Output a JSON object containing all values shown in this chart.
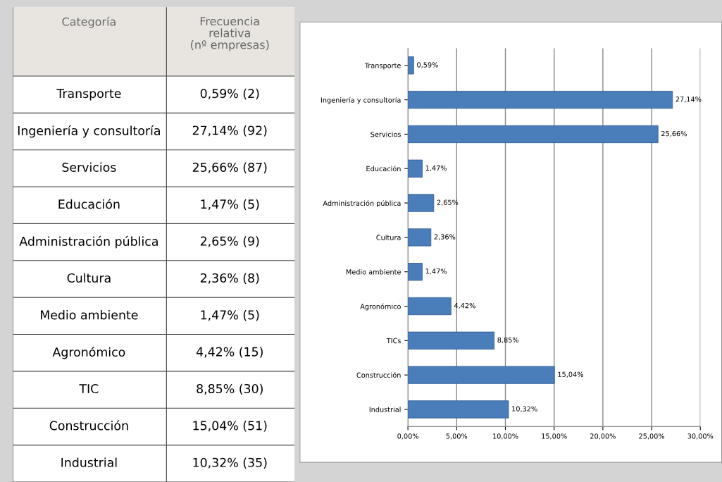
{
  "chart_data": [
    {
      "type": "other",
      "annotations": [
        "Categoría",
        "Frecuencia\nrelativa\n(nº empresas)"
      ],
      "categories": [
        "Transporte",
        "Ingeniería y consultoría",
        "Servicios",
        "Educación",
        "Administración pública",
        "Cultura",
        "Medio ambiente",
        "Agronómico",
        "TIC",
        "Construcción",
        "Industrial"
      ],
      "value_labels": [
        "0,59% (2)",
        "27,14% (92)",
        "25,66% (87)",
        "1,47% (5)",
        "2,65% (9)",
        "2,36% (8)",
        "1,47% (5)",
        "4,42% (15)",
        "8,85% (30)",
        "15,04% (51)",
        "10,32% (35)"
      ]
    },
    {
      "type": "bar",
      "orientation": "horizontal",
      "categories": [
        "Transporte",
        "Ingeniería y consultoría",
        "Servicios",
        "Educación",
        "Administración pública",
        "Cultura",
        "Medio ambiente",
        "Agronómico",
        "TICs",
        "Construcción",
        "Industrial"
      ],
      "values": [
        0.59,
        27.14,
        25.66,
        1.47,
        2.65,
        2.36,
        1.47,
        4.42,
        8.85,
        15.04,
        10.32
      ],
      "value_labels": [
        "0,59%",
        "27,14%",
        "25,66%",
        "1,47%",
        "2,65%",
        "2,36%",
        "1,47%",
        "4,42%",
        "8,85%",
        "15,04%",
        "10,32%"
      ],
      "color": "#4a7ebb",
      "xlim": [
        0,
        30
      ],
      "xticks": [
        {
          "value": 0,
          "label": "0,00%"
        },
        {
          "value": 5,
          "label": "5,00%"
        },
        {
          "value": 10,
          "label": "10,00%"
        },
        {
          "value": 15,
          "label": "15,00%"
        },
        {
          "value": 20,
          "label": "20,00%"
        },
        {
          "value": 25,
          "label": "25,00%"
        },
        {
          "value": 30,
          "label": "30,00%"
        }
      ],
      "grid": "x"
    }
  ]
}
